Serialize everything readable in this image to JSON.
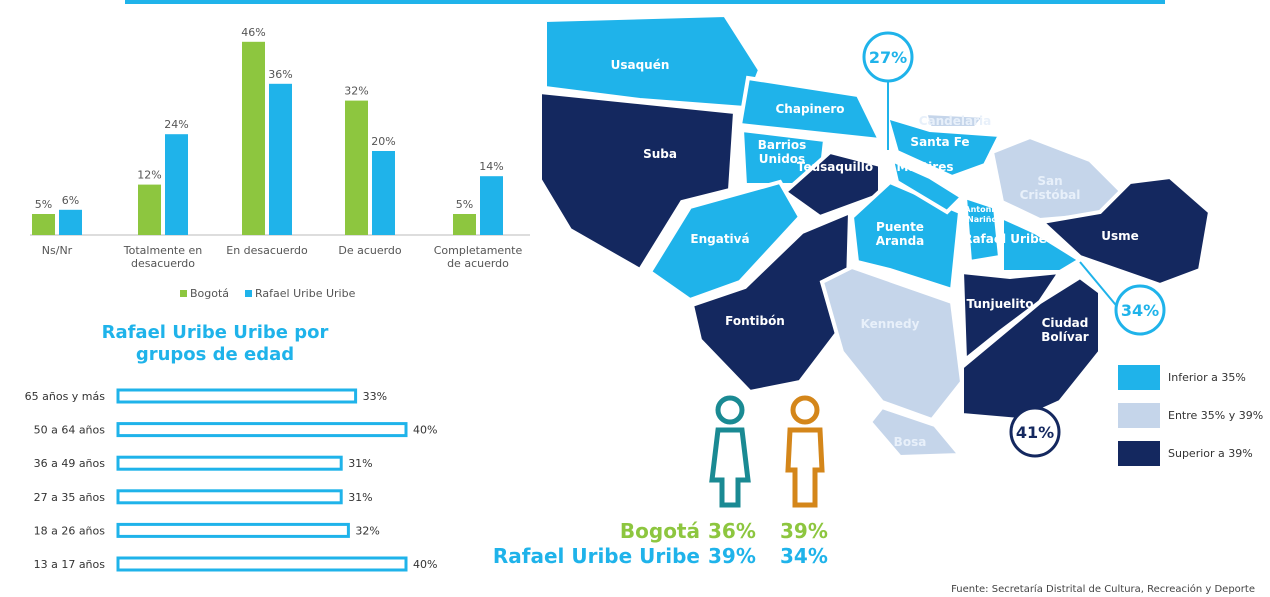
{
  "chart_data": [
    {
      "type": "bar",
      "categories": [
        "Ns/Nr",
        "Totalmente en desacuerdo",
        "En desacuerdo",
        "De acuerdo",
        "Completamente de acuerdo"
      ],
      "series": [
        {
          "name": "Bogotá",
          "color": "#8dc63f",
          "values": [
            5,
            12,
            46,
            32,
            5
          ],
          "value_labels": [
            "5%",
            "12%",
            "46%",
            "32%",
            "5%"
          ]
        },
        {
          "name": "Rafael Uribe Uribe",
          "color": "#1fb3ea",
          "values": [
            6,
            24,
            36,
            20,
            14
          ],
          "value_labels": [
            "6%",
            "24%",
            "36%",
            "20%",
            "14%"
          ]
        }
      ]
    },
    {
      "type": "hbar",
      "title": "Rafael Uribe Uribe por grupos de edad",
      "categories": [
        "65 años y más",
        "50 a 64 años",
        "36 a 49 años",
        "27 a 35 años",
        "18 a 26 años",
        "13 a 17 años"
      ],
      "values": [
        33,
        40,
        31,
        31,
        32,
        40
      ],
      "value_labels": [
        "33%",
        "40%",
        "31%",
        "31%",
        "32%",
        "40%"
      ],
      "color": "#1fb3ea"
    }
  ],
  "map": {
    "localities": [
      {
        "name": "Usaquén",
        "color": "#1fb3ea"
      },
      {
        "name": "Chapinero",
        "color": "#1fb3ea"
      },
      {
        "name": "Suba",
        "color": "#14285f"
      },
      {
        "name": "Barrios Unidos",
        "color": "#1fb3ea"
      },
      {
        "name": "Teusaquillo",
        "color": "#14285f"
      },
      {
        "name": "Engativá",
        "color": "#1fb3ea"
      },
      {
        "name": "Fontibón",
        "color": "#14285f"
      },
      {
        "name": "Puente Aranda",
        "color": "#1fb3ea"
      },
      {
        "name": "Kennedy",
        "color": "#c5d5ea"
      },
      {
        "name": "Bosa",
        "color": "#c5d5ea"
      },
      {
        "name": "Candelaria",
        "color": "#c5d5ea"
      },
      {
        "name": "Santa Fe",
        "color": "#1fb3ea"
      },
      {
        "name": "Mártires",
        "color": "#1fb3ea"
      },
      {
        "name": "San Cristóbal",
        "color": "#c5d5ea"
      },
      {
        "name": "Antonio Nariño",
        "color": "#1fb3ea"
      },
      {
        "name": "Rafael Uribe",
        "color": "#1fb3ea"
      },
      {
        "name": "Usme",
        "color": "#14285f"
      },
      {
        "name": "Tunjuelito",
        "color": "#14285f"
      },
      {
        "name": "Ciudad Bolívar",
        "color": "#14285f"
      }
    ],
    "callouts": [
      {
        "label": "27%",
        "color": "#1fb3ea"
      },
      {
        "label": "34%",
        "color": "#1fb3ea"
      },
      {
        "label": "41%",
        "color": "#14285f"
      }
    ],
    "legend": [
      {
        "label": "Inferior a 35%",
        "color": "#1fb3ea"
      },
      {
        "label": "Entre 35% y 39%",
        "color": "#c5d5ea"
      },
      {
        "label": "Superior a 39%",
        "color": "#14285f"
      }
    ]
  },
  "figures": {
    "rows": [
      {
        "name": "Bogotá",
        "female": "36%",
        "male": "39%",
        "color": "#8dc63f"
      },
      {
        "name": "Rafael Uribe Uribe",
        "female": "39%",
        "male": "34%",
        "color": "#1fb3ea"
      }
    ]
  },
  "source": "Fuente: Secretaría Distrital de Cultura, Recreación y Deporte"
}
